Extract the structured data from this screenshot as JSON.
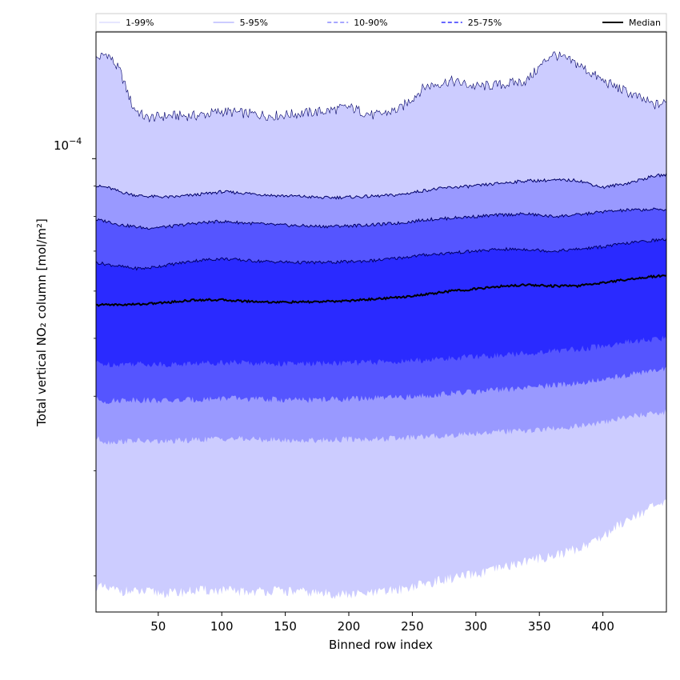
{
  "chart_data": {
    "type": "area",
    "title": "",
    "xlabel": "Binned row index",
    "ylabel": "Total vertical NO₂ column [mol/m²]",
    "y_scale": "log",
    "xlim": [
      1,
      450
    ],
    "ylim": [
      1.74e-05,
      0.000163
    ],
    "x_ticks": [
      50,
      100,
      150,
      200,
      250,
      300,
      350,
      400
    ],
    "x_tick_labels": [
      "50",
      "100",
      "150",
      "200",
      "250",
      "300",
      "350",
      "400"
    ],
    "y_major_tick": 0.0001,
    "y_major_tick_label_base": "10",
    "y_major_tick_label_exp": "−4",
    "grid": false,
    "legend_position": "top",
    "x": [
      1,
      10,
      20,
      30,
      40,
      60,
      80,
      100,
      120,
      140,
      160,
      180,
      200,
      220,
      240,
      260,
      280,
      300,
      320,
      340,
      360,
      380,
      400,
      420,
      440,
      450
    ],
    "series": [
      {
        "name": "1-99%",
        "color": "#ccccff",
        "lower": [
          1.92e-05,
          1.9e-05,
          1.89e-05,
          1.88e-05,
          1.88e-05,
          1.87e-05,
          1.89e-05,
          1.89e-05,
          1.88e-05,
          1.89e-05,
          1.88e-05,
          1.87e-05,
          1.86e-05,
          1.87e-05,
          1.9e-05,
          1.94e-05,
          1.98e-05,
          2.01e-05,
          2.06e-05,
          2.12e-05,
          2.16e-05,
          2.22e-05,
          2.33e-05,
          2.5e-05,
          2.61e-05,
          2.64e-05
        ],
        "upper": [
          0.000147,
          0.00015,
          0.00014,
          0.000122,
          0.000117,
          0.000118,
          0.000118,
          0.00012,
          0.000119,
          0.000118,
          0.000119,
          0.00012,
          0.000122,
          0.000118,
          0.000121,
          0.000132,
          0.000135,
          0.000132,
          0.000133,
          0.000135,
          0.00015,
          0.000144,
          0.000135,
          0.000129,
          0.000123,
          0.000124
        ]
      },
      {
        "name": "5-95%",
        "color": "#9999ff",
        "lower": [
          3.4e-05,
          3.35e-05,
          3.36e-05,
          3.37e-05,
          3.36e-05,
          3.36e-05,
          3.38e-05,
          3.4e-05,
          3.39e-05,
          3.38e-05,
          3.37e-05,
          3.38e-05,
          3.39e-05,
          3.39e-05,
          3.4e-05,
          3.42e-05,
          3.44e-05,
          3.47e-05,
          3.49e-05,
          3.5e-05,
          3.53e-05,
          3.56e-05,
          3.61e-05,
          3.7e-05,
          3.74e-05,
          3.76e-05
        ],
        "upper": [
          9e-05,
          8.95e-05,
          8.8e-05,
          8.7e-05,
          8.65e-05,
          8.62e-05,
          8.7e-05,
          8.8e-05,
          8.75e-05,
          8.68e-05,
          8.65e-05,
          8.6e-05,
          8.62e-05,
          8.65e-05,
          8.7e-05,
          8.85e-05,
          8.95e-05,
          9e-05,
          9.1e-05,
          9.18e-05,
          9.2e-05,
          9.2e-05,
          8.95e-05,
          9.1e-05,
          9.35e-05,
          9.4e-05
        ]
      },
      {
        "name": "10-90%",
        "color": "#5555ff",
        "lower": [
          3.95e-05,
          3.92e-05,
          3.94e-05,
          3.95e-05,
          3.94e-05,
          3.93e-05,
          3.95e-05,
          3.97e-05,
          3.96e-05,
          3.95e-05,
          3.94e-05,
          3.95e-05,
          3.96e-05,
          3.97e-05,
          3.98e-05,
          4.01e-05,
          4.04e-05,
          4.07e-05,
          4.1e-05,
          4.13e-05,
          4.17e-05,
          4.21e-05,
          4.26e-05,
          4.35e-05,
          4.41e-05,
          4.44e-05
        ],
        "upper": [
          7.9e-05,
          7.85e-05,
          7.75e-05,
          7.7e-05,
          7.65e-05,
          7.7e-05,
          7.8e-05,
          7.85e-05,
          7.8e-05,
          7.75e-05,
          7.72e-05,
          7.7e-05,
          7.72e-05,
          7.75e-05,
          7.8e-05,
          7.9e-05,
          7.95e-05,
          8e-05,
          8.05e-05,
          8.08e-05,
          8e-05,
          8.05e-05,
          8.15e-05,
          8.2e-05,
          8.22e-05,
          8.22e-05
        ]
      },
      {
        "name": "25-75%",
        "color": "#2a2aff",
        "lower": [
          4.55e-05,
          4.52e-05,
          4.53e-05,
          4.54e-05,
          4.53e-05,
          4.52e-05,
          4.54e-05,
          4.56e-05,
          4.55e-05,
          4.54e-05,
          4.53e-05,
          4.54e-05,
          4.55e-05,
          4.56e-05,
          4.57e-05,
          4.6e-05,
          4.63e-05,
          4.66e-05,
          4.69e-05,
          4.72e-05,
          4.76e-05,
          4.8e-05,
          4.85e-05,
          4.93e-05,
          4.98e-05,
          5e-05
        ],
        "upper": [
          6.7e-05,
          6.65e-05,
          6.6e-05,
          6.55e-05,
          6.55e-05,
          6.65e-05,
          6.75e-05,
          6.8e-05,
          6.75e-05,
          6.72e-05,
          6.7e-05,
          6.7e-05,
          6.72e-05,
          6.75e-05,
          6.82e-05,
          6.9e-05,
          6.95e-05,
          7e-05,
          7.05e-05,
          7.05e-05,
          7e-05,
          7.05e-05,
          7.12e-05,
          7.22e-05,
          7.3e-05,
          7.32e-05
        ]
      },
      {
        "name": "Median",
        "color": "#000000",
        "values": [
          5.68e-05,
          5.7e-05,
          5.69e-05,
          5.7e-05,
          5.71e-05,
          5.75e-05,
          5.8e-05,
          5.8e-05,
          5.77e-05,
          5.75e-05,
          5.75e-05,
          5.76e-05,
          5.78e-05,
          5.82e-05,
          5.86e-05,
          5.92e-05,
          6e-05,
          6.05e-05,
          6.11e-05,
          6.15e-05,
          6.12e-05,
          6.12e-05,
          6.2e-05,
          6.28e-05,
          6.35e-05,
          6.37e-05
        ]
      }
    ]
  }
}
